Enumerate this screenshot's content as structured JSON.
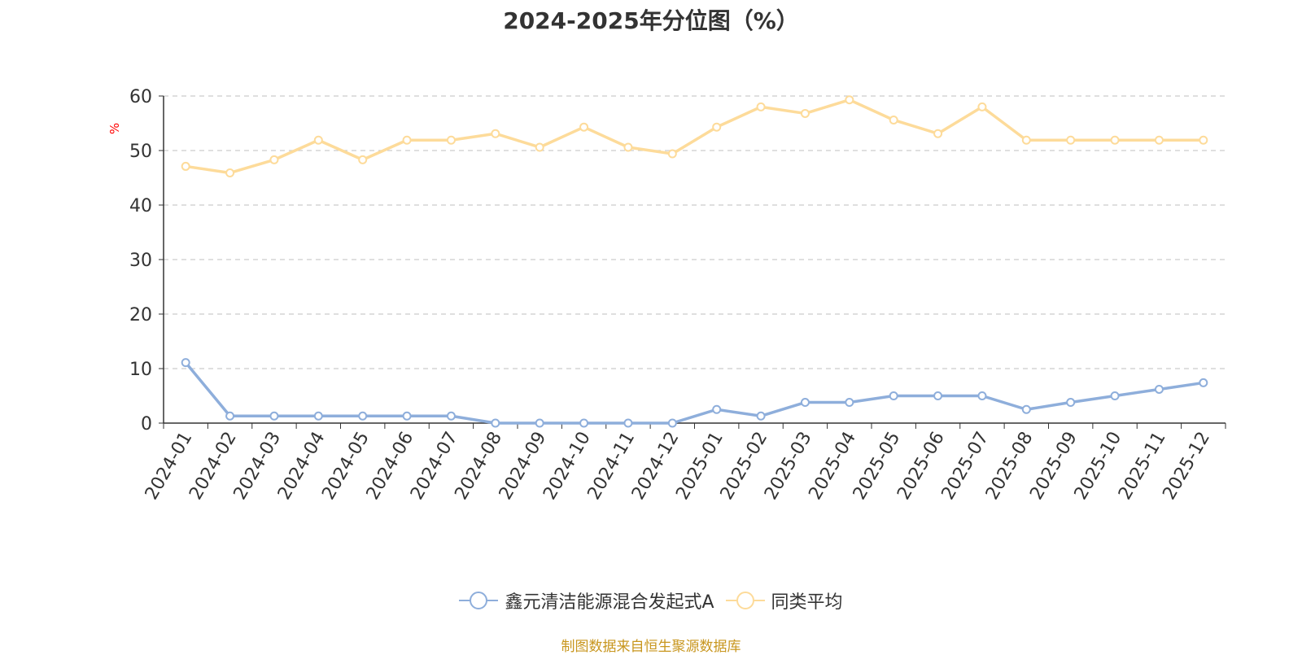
{
  "page": {
    "title": "2024-2025年分位图（%）",
    "source": "制图数据来自恒生聚源数据库",
    "source_color": "#c8961e"
  },
  "chart_data": {
    "type": "line",
    "title": "2024-2025年分位图（%）",
    "xlabel": "",
    "ylabel": "%",
    "ylabel_color": "#ff0000",
    "ylim": [
      0,
      60
    ],
    "yticks": [
      0,
      10,
      20,
      30,
      40,
      50,
      60
    ],
    "grid": true,
    "legend_position": "bottom",
    "categories": [
      "2024-01",
      "2024-02",
      "2024-03",
      "2024-04",
      "2024-05",
      "2024-06",
      "2024-07",
      "2024-08",
      "2024-09",
      "2024-10",
      "2024-11",
      "2024-12",
      "2025-01",
      "2025-02",
      "2025-03",
      "2025-04",
      "2025-05",
      "2025-06",
      "2025-07",
      "2025-08",
      "2025-09",
      "2025-10",
      "2025-11",
      "2025-12"
    ],
    "series": [
      {
        "name": "鑫元清洁能源混合发起式A",
        "color": "#8eaedb",
        "values": [
          11.1,
          1.3,
          1.3,
          1.3,
          1.3,
          1.3,
          1.3,
          0.0,
          0.0,
          0.0,
          0.0,
          0.0,
          2.5,
          1.3,
          3.8,
          3.8,
          5.0,
          5.0,
          5.0,
          2.5,
          3.8,
          5.0,
          6.2,
          7.4
        ]
      },
      {
        "name": "同类平均",
        "color": "#fddb9a",
        "values": [
          47.1,
          45.9,
          48.3,
          51.9,
          48.3,
          51.9,
          51.9,
          53.1,
          50.6,
          54.3,
          50.6,
          49.4,
          54.3,
          58.0,
          56.8,
          59.3,
          55.6,
          53.1,
          58.0,
          51.9,
          51.9,
          51.9,
          51.9,
          51.9
        ]
      }
    ]
  }
}
